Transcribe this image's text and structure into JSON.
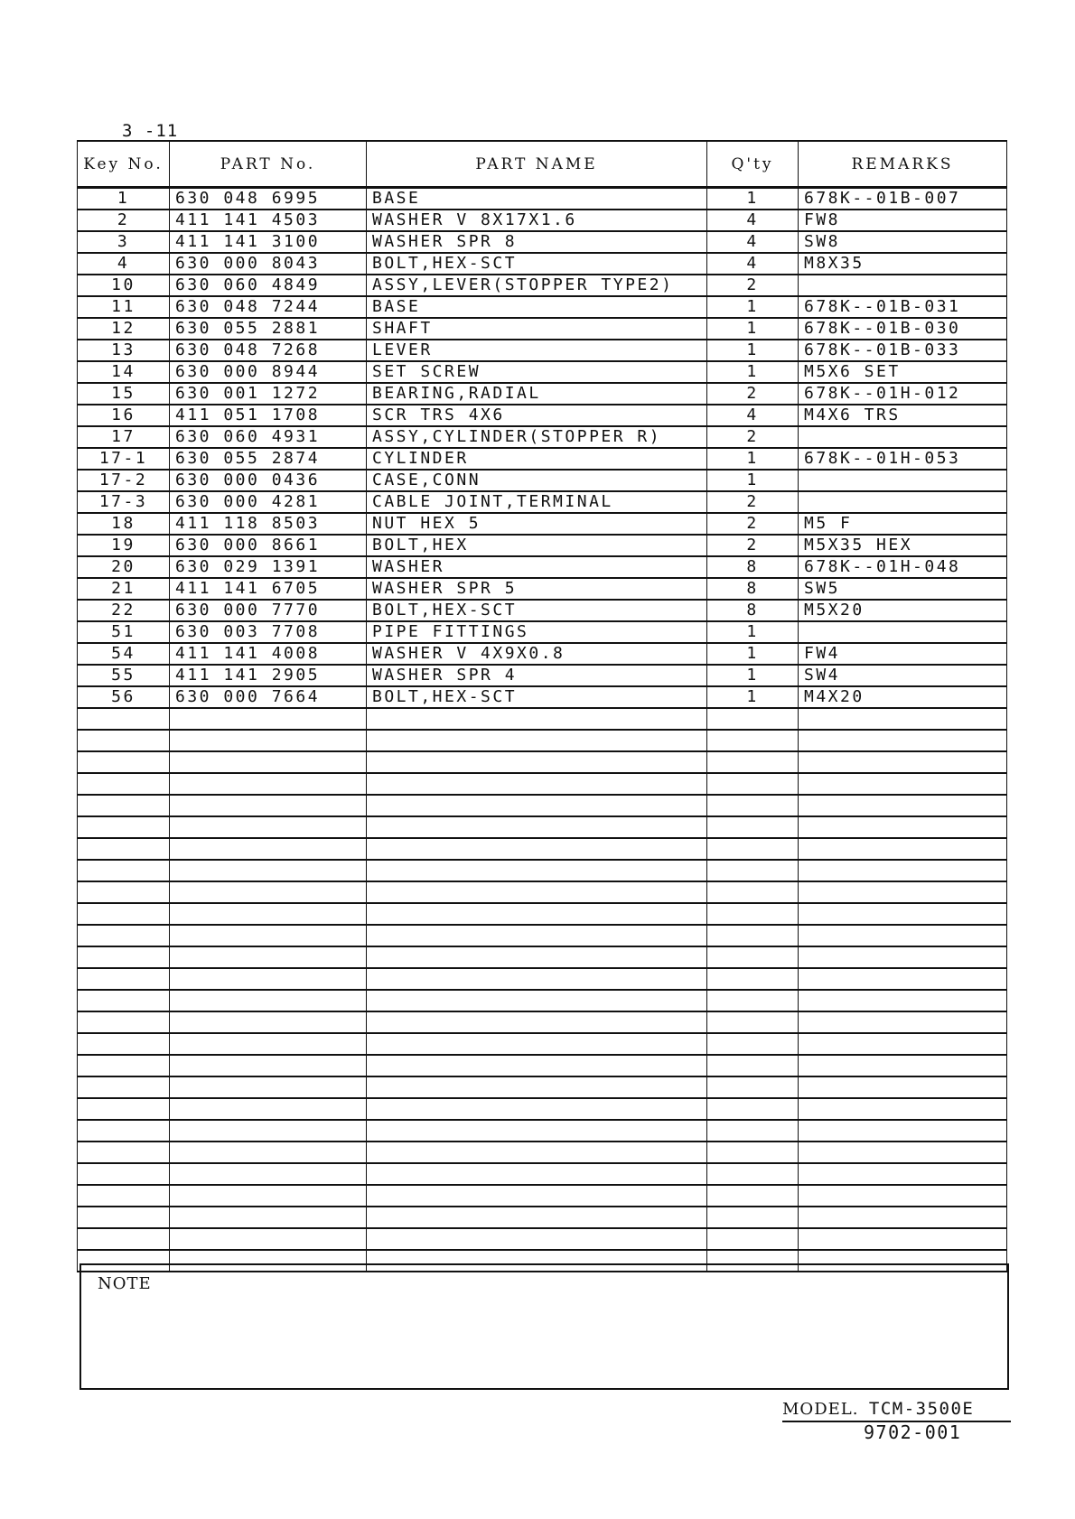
{
  "page_number": "3 -11",
  "table": {
    "headers": {
      "key_no": "Key No.",
      "part_no": "PART No.",
      "part_name": "PART NAME",
      "qty": "Q'ty",
      "remarks": "REMARKS"
    },
    "rows": [
      {
        "key": "1",
        "part_no": "630 048 6995",
        "name": "BASE",
        "qty": "1",
        "remarks": "678K--01B-007"
      },
      {
        "key": "2",
        "part_no": "411 141 4503",
        "name": "WASHER V 8X17X1.6",
        "qty": "4",
        "remarks": "FW8"
      },
      {
        "key": "3",
        "part_no": "411 141 3100",
        "name": "WASHER SPR 8",
        "qty": "4",
        "remarks": "SW8"
      },
      {
        "key": "4",
        "part_no": "630 000 8043",
        "name": "BOLT,HEX-SCT",
        "qty": "4",
        "remarks": "M8X35"
      },
      {
        "key": "10",
        "part_no": "630 060 4849",
        "name": "ASSY,LEVER(STOPPER TYPE2)",
        "qty": "2",
        "remarks": ""
      },
      {
        "key": "11",
        "part_no": "630 048 7244",
        "name": "BASE",
        "qty": "1",
        "remarks": "678K--01B-031"
      },
      {
        "key": "12",
        "part_no": "630 055 2881",
        "name": "SHAFT",
        "qty": "1",
        "remarks": "678K--01B-030"
      },
      {
        "key": "13",
        "part_no": "630 048 7268",
        "name": "LEVER",
        "qty": "1",
        "remarks": "678K--01B-033"
      },
      {
        "key": "14",
        "part_no": "630 000 8944",
        "name": "SET SCREW",
        "qty": "1",
        "remarks": "M5X6 SET"
      },
      {
        "key": "15",
        "part_no": "630 001 1272",
        "name": "BEARING,RADIAL",
        "qty": "2",
        "remarks": "678K--01H-012"
      },
      {
        "key": "16",
        "part_no": "411 051 1708",
        "name": "SCR TRS 4X6",
        "qty": "4",
        "remarks": "M4X6 TRS"
      },
      {
        "key": "17",
        "part_no": "630 060 4931",
        "name": "ASSY,CYLINDER(STOPPER R)",
        "qty": "2",
        "remarks": ""
      },
      {
        "key": "17-1",
        "part_no": "630 055 2874",
        "name": "CYLINDER",
        "qty": "1",
        "remarks": "678K--01H-053"
      },
      {
        "key": "17-2",
        "part_no": "630 000 0436",
        "name": "CASE,CONN",
        "qty": "1",
        "remarks": ""
      },
      {
        "key": "17-3",
        "part_no": "630 000 4281",
        "name": "CABLE JOINT,TERMINAL",
        "qty": "2",
        "remarks": ""
      },
      {
        "key": "18",
        "part_no": "411 118 8503",
        "name": "NUT HEX 5",
        "qty": "2",
        "remarks": "M5 F"
      },
      {
        "key": "19",
        "part_no": "630 000 8661",
        "name": "BOLT,HEX",
        "qty": "2",
        "remarks": "M5X35 HEX"
      },
      {
        "key": "20",
        "part_no": "630 029 1391",
        "name": "WASHER",
        "qty": "8",
        "remarks": "678K--01H-048"
      },
      {
        "key": "21",
        "part_no": "411 141 6705",
        "name": "WASHER SPR 5",
        "qty": "8",
        "remarks": "SW5"
      },
      {
        "key": "22",
        "part_no": "630 000 7770",
        "name": "BOLT,HEX-SCT",
        "qty": "8",
        "remarks": "M5X20"
      },
      {
        "key": "51",
        "part_no": "630 003 7708",
        "name": "PIPE FITTINGS",
        "qty": "1",
        "remarks": ""
      },
      {
        "key": "54",
        "part_no": "411 141 4008",
        "name": "WASHER V 4X9X0.8",
        "qty": "1",
        "remarks": "FW4"
      },
      {
        "key": "55",
        "part_no": "411 141 2905",
        "name": "WASHER SPR 4",
        "qty": "1",
        "remarks": "SW4"
      },
      {
        "key": "56",
        "part_no": "630 000 7664",
        "name": "BOLT,HEX-SCT",
        "qty": "1",
        "remarks": "M4X20"
      }
    ]
  },
  "note_label": "NOTE",
  "footer": {
    "model_label": "MODEL.",
    "model_value": "TCM-3500E",
    "document_number": "9702-001"
  }
}
